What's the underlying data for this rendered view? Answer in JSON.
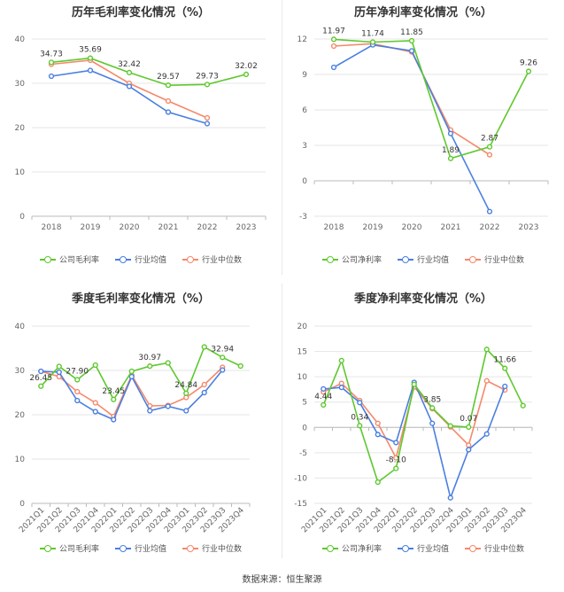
{
  "colors": {
    "company": "#5ec82e",
    "avg": "#4a7fe0",
    "median": "#f4896b"
  },
  "source_text": "数据来源：恒生聚源",
  "charts": [
    {
      "title": "历年毛利率变化情况（%）",
      "legend": [
        "公司毛利率",
        "行业均值",
        "行业中位数"
      ]
    },
    {
      "title": "历年净利率变化情况（%）",
      "legend": [
        "公司净利率",
        "行业均值",
        "行业中位数"
      ]
    },
    {
      "title": "季度毛利率变化情况（%）",
      "legend": [
        "公司毛利率",
        "行业均值",
        "行业中位数"
      ]
    },
    {
      "title": "季度净利率变化情况（%）",
      "legend": [
        "公司净利率",
        "行业均值",
        "行业中位数"
      ]
    }
  ],
  "chart_data": [
    {
      "type": "line",
      "title": "历年毛利率变化情况（%）",
      "categories": [
        "2018",
        "2019",
        "2020",
        "2021",
        "2022",
        "2023"
      ],
      "ylim": [
        0,
        40
      ],
      "yticks": [
        0,
        10,
        20,
        30,
        40
      ],
      "series": [
        {
          "name": "公司毛利率",
          "key": "company",
          "values": [
            34.73,
            35.69,
            32.42,
            29.57,
            29.73,
            32.02
          ]
        },
        {
          "name": "行业均值",
          "key": "avg",
          "values": [
            31.6,
            32.9,
            29.3,
            23.5,
            20.9,
            null
          ]
        },
        {
          "name": "行业中位数",
          "key": "median",
          "values": [
            34.3,
            35.2,
            30.0,
            26.0,
            22.2,
            null
          ]
        }
      ],
      "labels": [
        {
          "series": 0,
          "index": 0,
          "text": "34.73"
        },
        {
          "series": 0,
          "index": 1,
          "text": "35.69"
        },
        {
          "series": 0,
          "index": 2,
          "text": "32.42"
        },
        {
          "series": 0,
          "index": 3,
          "text": "29.57"
        },
        {
          "series": 0,
          "index": 4,
          "text": "29.73"
        },
        {
          "series": 0,
          "index": 5,
          "text": "32.02"
        }
      ]
    },
    {
      "type": "line",
      "title": "历年净利率变化情况（%）",
      "categories": [
        "2018",
        "2019",
        "2020",
        "2021",
        "2022",
        "2023"
      ],
      "ylim": [
        -3,
        12
      ],
      "yticks": [
        -3,
        0,
        3,
        6,
        9,
        12
      ],
      "series": [
        {
          "name": "公司净利率",
          "key": "company",
          "values": [
            11.97,
            11.74,
            11.85,
            1.89,
            2.87,
            9.26
          ]
        },
        {
          "name": "行业均值",
          "key": "avg",
          "values": [
            9.6,
            11.5,
            11.0,
            4.0,
            -2.6,
            null
          ]
        },
        {
          "name": "行业中位数",
          "key": "median",
          "values": [
            11.4,
            11.6,
            10.9,
            4.3,
            2.2,
            null
          ]
        }
      ],
      "labels": [
        {
          "series": 0,
          "index": 0,
          "text": "11.97"
        },
        {
          "series": 0,
          "index": 1,
          "text": "11.74"
        },
        {
          "series": 0,
          "index": 2,
          "text": "11.85"
        },
        {
          "series": 0,
          "index": 3,
          "text": "1.89"
        },
        {
          "series": 0,
          "index": 4,
          "text": "2.87"
        },
        {
          "series": 0,
          "index": 5,
          "text": "9.26"
        }
      ]
    },
    {
      "type": "line",
      "title": "季度毛利率变化情况（%）",
      "categories": [
        "2021Q1",
        "2021Q2",
        "2021Q3",
        "2021Q4",
        "2022Q1",
        "2022Q2",
        "2022Q3",
        "2022Q4",
        "2023Q1",
        "2023Q2",
        "2023Q3",
        "2023Q4"
      ],
      "ylim": [
        0,
        40
      ],
      "yticks": [
        0,
        10,
        20,
        30,
        40
      ],
      "series": [
        {
          "name": "公司毛利率",
          "key": "company",
          "values": [
            26.45,
            30.9,
            27.9,
            31.2,
            23.45,
            29.8,
            30.97,
            31.7,
            24.84,
            35.3,
            32.94,
            31.0
          ]
        },
        {
          "name": "行业均值",
          "key": "avg",
          "values": [
            29.8,
            29.6,
            23.2,
            20.7,
            18.9,
            28.6,
            20.9,
            21.9,
            20.9,
            25.0,
            30.1,
            null
          ]
        },
        {
          "name": "行业中位数",
          "key": "median",
          "values": [
            29.8,
            28.6,
            25.2,
            22.7,
            19.6,
            28.9,
            22.0,
            22.1,
            23.9,
            26.8,
            30.7,
            null
          ]
        }
      ],
      "labels": [
        {
          "series": 0,
          "index": 0,
          "text": "26.45"
        },
        {
          "series": 0,
          "index": 2,
          "text": "27.90"
        },
        {
          "series": 0,
          "index": 4,
          "text": "23.45"
        },
        {
          "series": 0,
          "index": 6,
          "text": "30.97"
        },
        {
          "series": 0,
          "index": 8,
          "text": "24.84"
        },
        {
          "series": 0,
          "index": 10,
          "text": "32.94"
        }
      ]
    },
    {
      "type": "line",
      "title": "季度净利率变化情况（%）",
      "categories": [
        "2021Q1",
        "2021Q2",
        "2021Q3",
        "2021Q4",
        "2022Q1",
        "2022Q2",
        "2022Q3",
        "2022Q4",
        "2023Q1",
        "2023Q2",
        "2023Q3",
        "2023Q4"
      ],
      "ylim": [
        -15,
        20
      ],
      "yticks": [
        -15,
        -10,
        -5,
        0,
        5,
        10,
        15,
        20
      ],
      "series": [
        {
          "name": "公司净利率",
          "key": "company",
          "values": [
            4.44,
            13.2,
            0.34,
            -10.8,
            -8.1,
            8.5,
            3.85,
            0.3,
            0.07,
            15.4,
            11.66,
            4.3
          ]
        },
        {
          "name": "行业均值",
          "key": "avg",
          "values": [
            7.6,
            7.9,
            4.9,
            -1.4,
            -3.0,
            8.9,
            0.8,
            -13.9,
            -4.4,
            -1.3,
            8.1,
            null
          ]
        },
        {
          "name": "行业中位数",
          "key": "median",
          "values": [
            7.0,
            8.7,
            5.3,
            0.8,
            -6.0,
            8.0,
            3.7,
            0.1,
            -3.5,
            9.2,
            7.4,
            null
          ]
        }
      ],
      "labels": [
        {
          "series": 0,
          "index": 0,
          "text": "4.44"
        },
        {
          "series": 0,
          "index": 2,
          "text": "0.34"
        },
        {
          "series": 0,
          "index": 4,
          "text": "-8.10"
        },
        {
          "series": 0,
          "index": 6,
          "text": "3.85"
        },
        {
          "series": 0,
          "index": 8,
          "text": "0.07"
        },
        {
          "series": 0,
          "index": 10,
          "text": "11.66"
        }
      ]
    }
  ]
}
